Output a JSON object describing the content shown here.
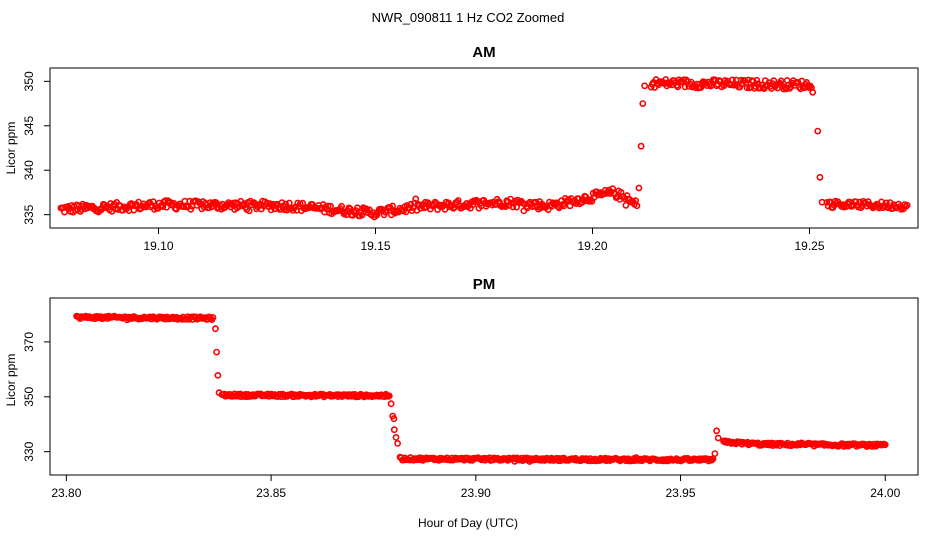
{
  "figure_title": "NWR_090811  1 Hz CO2 Zoomed",
  "xlabel": "Hour of Day (UTC)",
  "chart_data": [
    {
      "type": "scatter",
      "title": "AM",
      "xlabel": "",
      "ylabel": "Licor ppm",
      "xlim": [
        19.075,
        19.275
      ],
      "ylim": [
        333.5,
        351.5
      ],
      "xticks": [
        19.1,
        19.15,
        19.2,
        19.25
      ],
      "xtick_labels": [
        "19.10",
        "19.15",
        "19.20",
        "19.25"
      ],
      "yticks": [
        335,
        340,
        345,
        350
      ],
      "ytick_labels": [
        "335",
        "340",
        "345",
        "350"
      ],
      "grid": false,
      "marker_color": "#ff0000",
      "series": [
        {
          "x_range": [
            19.0775,
            19.2725
          ],
          "x_step": 0.00028,
          "segments": [
            {
              "x_start": 19.0775,
              "x_end": 19.2105,
              "profile": [
                [
                  19.0775,
                  335.6
                ],
                [
                  19.1,
                  336.1
                ],
                [
                  19.13,
                  336.0
                ],
                [
                  19.15,
                  335.2
                ],
                [
                  19.16,
                  335.9
                ],
                [
                  19.18,
                  336.4
                ],
                [
                  19.19,
                  336.0
                ],
                [
                  19.205,
                  337.5
                ],
                [
                  19.2105,
                  336.0
                ]
              ],
              "noise": 0.5
            },
            {
              "x_start": 19.2105,
              "x_end": 19.2135,
              "points": [
                [
                  19.2107,
                  338.0
                ],
                [
                  19.2112,
                  342.7
                ],
                [
                  19.2116,
                  347.5
                ],
                [
                  19.212,
                  349.5
                ]
              ]
            },
            {
              "x_start": 19.2135,
              "x_end": 19.251,
              "profile": [
                [
                  19.2135,
                  349.8
                ],
                [
                  19.251,
                  349.6
                ]
              ],
              "noise": 0.5
            },
            {
              "x_start": 19.251,
              "x_end": 19.254,
              "points": [
                [
                  19.2519,
                  344.4
                ],
                [
                  19.2524,
                  339.2
                ],
                [
                  19.2529,
                  336.4
                ]
              ]
            },
            {
              "x_start": 19.254,
              "x_end": 19.2725,
              "profile": [
                [
                  19.254,
                  336.2
                ],
                [
                  19.2725,
                  336.0
                ]
              ],
              "noise": 0.4
            }
          ]
        }
      ]
    },
    {
      "type": "scatter",
      "title": "PM",
      "xlabel": "",
      "ylabel": "Licor ppm",
      "xlim": [
        23.796,
        24.008
      ],
      "ylim": [
        321.5,
        386
      ],
      "xticks": [
        23.8,
        23.85,
        23.9,
        23.95,
        24.0
      ],
      "xtick_labels": [
        "23.80",
        "23.85",
        "23.90",
        "23.95",
        "24.00"
      ],
      "yticks": [
        330,
        350,
        370
      ],
      "ytick_labels": [
        "330",
        "350",
        "370"
      ],
      "grid": false,
      "marker_color": "#ff0000",
      "series": [
        {
          "x_range": [
            23.8025,
            24.0
          ],
          "x_step": 0.00028,
          "segments": [
            {
              "x_start": 23.8025,
              "x_end": 23.836,
              "profile": [
                [
                  23.8025,
                  379.0
                ],
                [
                  23.836,
                  378.6
                ]
              ],
              "noise": 0.5
            },
            {
              "x_start": 23.836,
              "x_end": 23.838,
              "points": [
                [
                  23.8364,
                  374.8
                ],
                [
                  23.8367,
                  366.3
                ],
                [
                  23.837,
                  357.8
                ],
                [
                  23.8373,
                  351.5
                ]
              ]
            },
            {
              "x_start": 23.838,
              "x_end": 23.879,
              "profile": [
                [
                  23.838,
                  350.6
                ],
                [
                  23.879,
                  350.4
                ]
              ],
              "noise": 0.5
            },
            {
              "x_start": 23.879,
              "x_end": 23.8815,
              "points": [
                [
                  23.8793,
                  347.5
                ],
                [
                  23.8797,
                  343.0
                ],
                [
                  23.8801,
                  338.0
                ],
                [
                  23.8805,
                  335.2
                ],
                [
                  23.8809,
                  333.0
                ],
                [
                  23.88,
                  342.0
                ]
              ]
            },
            {
              "x_start": 23.8815,
              "x_end": 23.958,
              "profile": [
                [
                  23.8815,
                  327.4
                ],
                [
                  23.958,
                  327.0
                ]
              ],
              "noise": 0.5
            },
            {
              "x_start": 23.958,
              "x_end": 23.9605,
              "points": [
                [
                  23.9584,
                  329.3
                ],
                [
                  23.9588,
                  337.6
                ],
                [
                  23.9592,
                  335.0
                ]
              ]
            },
            {
              "x_start": 23.9605,
              "x_end": 24.0,
              "profile": [
                [
                  23.9605,
                  333.5
                ],
                [
                  23.97,
                  332.7
                ],
                [
                  24.0,
                  332.3
                ]
              ],
              "noise": 0.5
            }
          ]
        }
      ]
    }
  ]
}
